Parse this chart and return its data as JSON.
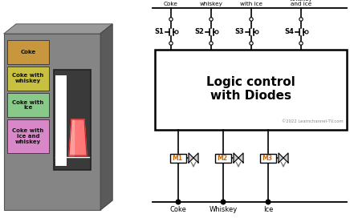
{
  "bg_color": "#ffffff",
  "button_colors": [
    "#c8963c",
    "#c8c040",
    "#88c888",
    "#d888c8"
  ],
  "button_labels": [
    "Coke",
    "Coke with\nwhiskey",
    "Coke with\nice",
    "Coke with\nice and\nwhiskey"
  ],
  "box_title_line1": "Logic control",
  "box_title_line2": "with Diodes",
  "copyright_text": "©2022 Learnchannel-TV.com",
  "switch_labels": [
    "S1",
    "S2",
    "S3",
    "S4"
  ],
  "top_labels": [
    "Coke",
    "Coke\nwith\nwhiskey",
    "Coke\nwith ice",
    "Coke with\nwhiskey\nand ice"
  ],
  "motor_labels": [
    "M1",
    "M2",
    "M3"
  ],
  "bottom_labels": [
    "Coke",
    "Whiskey",
    "Ice"
  ],
  "motor_label_color": "#cc6600",
  "gray_machine": "#858585",
  "gray_dark": "#636363",
  "gray_light": "#999999"
}
